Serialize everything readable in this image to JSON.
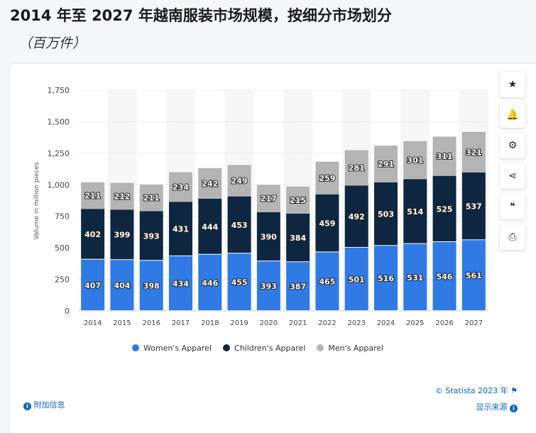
{
  "title": "2014 年至 2027 年越南服装市场规模，按细分市场划分",
  "subtitle": "（百万件）",
  "toolbar": [
    {
      "icon": "star-icon",
      "glyph": "★"
    },
    {
      "icon": "bell-icon",
      "glyph": "🔔"
    },
    {
      "icon": "gear-icon",
      "glyph": "⚙"
    },
    {
      "icon": "share-icon",
      "glyph": "⋖"
    },
    {
      "icon": "quote-icon",
      "glyph": "❝"
    },
    {
      "icon": "print-icon",
      "glyph": "⎙"
    }
  ],
  "footer": {
    "copyright": "© Statista 2023 年",
    "additional_info": "附加信息",
    "show_source": "显示来源"
  },
  "chart_data": {
    "type": "bar",
    "stacked": true,
    "categories": [
      "2014",
      "2015",
      "2016",
      "2017",
      "2018",
      "2019",
      "2020",
      "2021",
      "2022",
      "2023",
      "2024",
      "2025",
      "2026",
      "2027"
    ],
    "series": [
      {
        "name": "Women's Apparel",
        "color": "#2f7ae5",
        "values": [
          407,
          404,
          398,
          434,
          446,
          455,
          393,
          387,
          465,
          501,
          516,
          531,
          546,
          561
        ]
      },
      {
        "name": "Children's Apparel",
        "color": "#0f2640",
        "values": [
          402,
          399,
          393,
          431,
          444,
          453,
          390,
          384,
          459,
          492,
          503,
          514,
          525,
          537
        ]
      },
      {
        "name": "Men's Apparel",
        "color": "#b4b4b4",
        "values": [
          211,
          212,
          211,
          234,
          242,
          249,
          217,
          215,
          259,
          281,
          291,
          301,
          311,
          321
        ]
      }
    ],
    "ylabel": "Volume in million pieces",
    "ylim": [
      0,
      1750
    ],
    "yticks": [
      "0",
      "250",
      "500",
      "750",
      "1,000",
      "1,250",
      "1,500",
      "1,750"
    ],
    "grid": true,
    "legend": "bottom"
  }
}
